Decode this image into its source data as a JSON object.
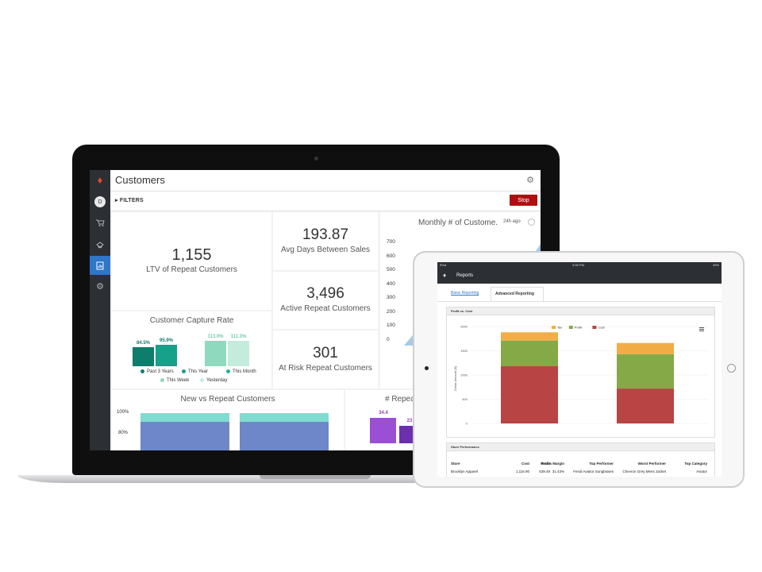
{
  "laptop": {
    "sidebar": {
      "avatar_initial": "D"
    },
    "title": "Customers",
    "filters_label": "FILTERS",
    "stop_label": "Stop",
    "kpis": {
      "ltv": {
        "value": "1,155",
        "label": "LTV of Repeat Customers"
      },
      "avg_days": {
        "value": "193.87",
        "label": "Avg Days Between Sales"
      },
      "active": {
        "value": "3,496",
        "label": "Active Repeat Customers"
      },
      "at_risk": {
        "value": "301",
        "label": "At Risk Repeat Customers"
      }
    },
    "monthly": {
      "title": "Monthly # of Custome.",
      "time_ago": "24h ago",
      "y_ticks": [
        "700",
        "600",
        "500",
        "400",
        "300",
        "200",
        "100",
        "0"
      ]
    },
    "capture_rate": {
      "title": "Customer Capture Rate",
      "bars": [
        {
          "label": "84.5%",
          "value": 84.5,
          "color": "#0f7d6b"
        },
        {
          "label": "95.9%",
          "value": 95.9,
          "color": "#17a08a"
        },
        {
          "label": "113.0%",
          "value": 113.0,
          "color": "#8fd9bf"
        },
        {
          "label": "111.3%",
          "value": 111.3,
          "color": "#c4ecdc"
        }
      ],
      "legend": [
        "Past 3 Years",
        "This Year",
        "This Month",
        "This Week",
        "Yesterday"
      ],
      "legend_colors": [
        "#0f7d6b",
        "#17a08a",
        "#1fb59a",
        "#8fd9bf",
        "#c4ecdc"
      ]
    },
    "new_vs_repeat": {
      "title": "New vs Repeat Customers",
      "y_ticks": [
        "100%",
        "80%"
      ]
    },
    "repeat_partial": {
      "title": "# Repea",
      "bars": [
        {
          "label": "34.4",
          "value": 34.4
        },
        {
          "label": "23",
          "value": 23
        }
      ]
    }
  },
  "tablet": {
    "status": {
      "left": "iPad",
      "time": "3:55 PM",
      "battery": "49%"
    },
    "title": "Reports",
    "tabs": [
      "Basic Reporting",
      "Advanced Reporting"
    ],
    "profit_panel": {
      "title": "Profit vs. Cost",
      "y_label": "Dollar Amount ($)",
      "legend": [
        "Tax",
        "Profit",
        "Cost"
      ]
    },
    "store_panel": {
      "title": "Store Performance",
      "columns": [
        "Store",
        "Cost",
        "Profit",
        "Gross Margin",
        "Top Performer",
        "Worst Performer",
        "Top Category"
      ],
      "rows": [
        [
          "Brooklyn Apparel",
          "1,116.90",
          "539.49",
          "31.43%",
          "Fendi Aviator Sunglasses",
          "Chevron Grey Mens Jacket",
          "Aviator"
        ]
      ]
    }
  },
  "chart_data": [
    {
      "type": "bar",
      "title": "Customer Capture Rate",
      "categories": [
        "Past 3 Years",
        "This Year",
        "This Month",
        "This Week"
      ],
      "values": [
        84.5,
        95.9,
        113.0,
        111.3
      ],
      "ylim": [
        0,
        120
      ]
    },
    {
      "type": "bar",
      "title": "Profit vs. Cost",
      "ylabel": "Dollar Amount ($)",
      "y_ticks": [
        0,
        500,
        1000,
        1500,
        2000
      ],
      "ylim": [
        0,
        2000
      ],
      "categories": [
        "",
        ""
      ],
      "stacked": true,
      "series": [
        {
          "name": "Cost",
          "values": [
            1180,
            720
          ],
          "color": "#b84444"
        },
        {
          "name": "Profit",
          "values": [
            530,
            710
          ],
          "color": "#84a946"
        },
        {
          "name": "Tax",
          "values": [
            170,
            230
          ],
          "color": "#f2ad46"
        }
      ]
    }
  ]
}
